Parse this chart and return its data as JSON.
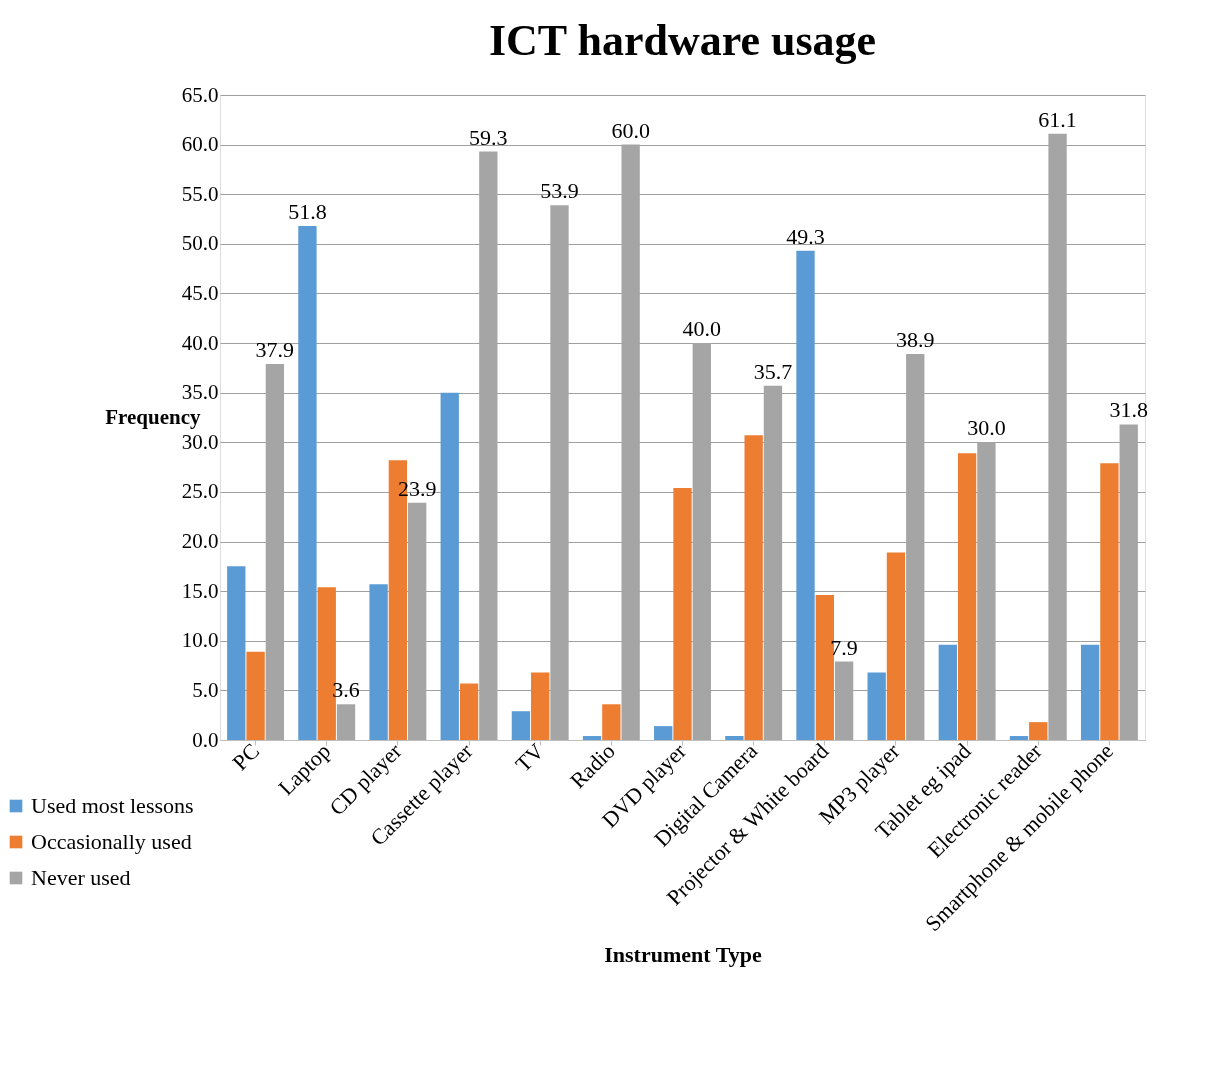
{
  "chart_data": {
    "type": "bar",
    "title": "ICT hardware usage",
    "xlabel": "Instrument Type",
    "ylabel": "Frequency",
    "categories": [
      "PC",
      "Laptop",
      "CD player",
      "Cassette player",
      "TV",
      "Radio",
      "DVD player",
      "Digital Camera",
      "Projector & White board",
      "MP3 player",
      "Tablet eg ipad",
      "Electronic reader",
      "Smartphone & mobile phone"
    ],
    "series": [
      {
        "name": "Used most lessons",
        "color": "#5b9bd5",
        "values": [
          17.5,
          51.8,
          15.7,
          35.0,
          2.9,
          0.4,
          1.4,
          0.4,
          49.3,
          6.8,
          9.6,
          0.4,
          9.6
        ],
        "value_labels": [
          null,
          "51.8",
          null,
          null,
          null,
          null,
          null,
          null,
          "49.3",
          null,
          null,
          null,
          null
        ]
      },
      {
        "name": "Occasionally used",
        "color": "#ed7d31",
        "values": [
          8.9,
          15.4,
          28.2,
          5.7,
          6.8,
          3.6,
          25.4,
          30.7,
          14.6,
          18.9,
          28.9,
          1.8,
          27.9
        ]
      },
      {
        "name": "Never used",
        "color": "#a5a5a5",
        "values": [
          37.9,
          3.6,
          23.9,
          59.3,
          53.9,
          60.0,
          40.0,
          35.7,
          7.9,
          38.9,
          30.0,
          61.1,
          31.8
        ],
        "value_labels": [
          "37.9",
          "3.6",
          "23.9",
          "59.3",
          "53.9",
          "60.0",
          "40.0",
          "35.7",
          "7.9",
          "38.9",
          "30.0",
          "61.1",
          "31.8"
        ]
      }
    ],
    "ylim": [
      0,
      65
    ],
    "yticks": [
      {
        "value": 0,
        "label": "0.0"
      },
      {
        "value": 5,
        "label": "5.0"
      },
      {
        "value": 10,
        "label": "10.0"
      },
      {
        "value": 15,
        "label": "15.0"
      },
      {
        "value": 20,
        "label": "20.0"
      },
      {
        "value": 25,
        "label": "25.0"
      },
      {
        "value": 30,
        "label": "30.0"
      },
      {
        "value": 35,
        "label": "35.0"
      },
      {
        "value": 40,
        "label": "40.0"
      },
      {
        "value": 45,
        "label": "45.0"
      },
      {
        "value": 50,
        "label": "50.0"
      },
      {
        "value": 55,
        "label": "55.0"
      },
      {
        "value": 60,
        "label": "60.0"
      },
      {
        "value": 65,
        "label": "65.0"
      }
    ],
    "grid": "y",
    "legend": "bottom left"
  }
}
